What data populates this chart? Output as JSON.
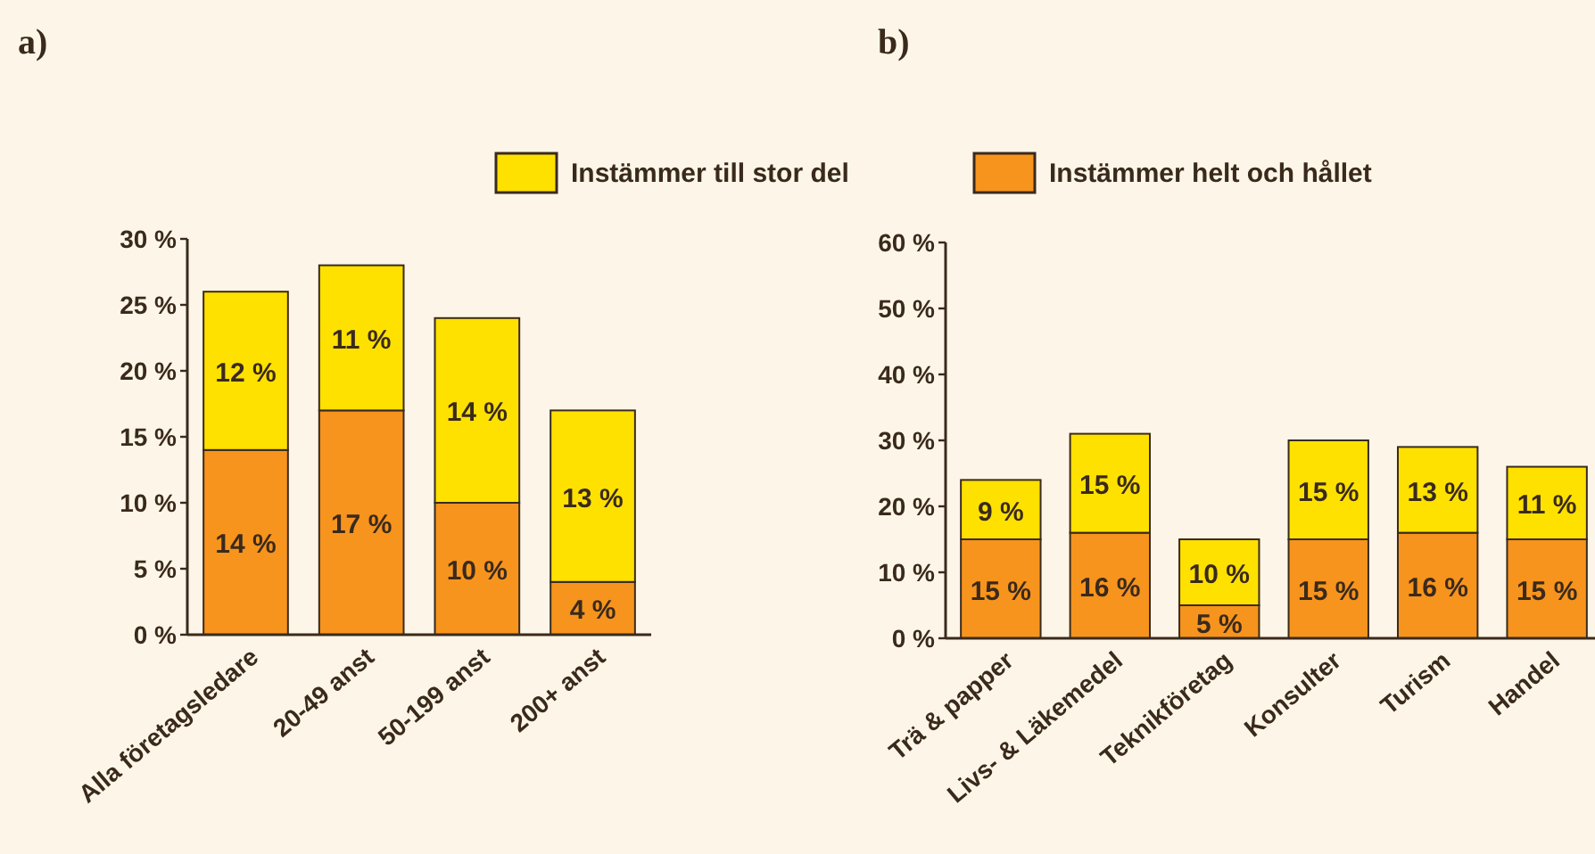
{
  "chart_data": [
    {
      "type": "bar",
      "title": "a)",
      "categories": [
        "Alla företagsledare",
        "20-49 anst",
        "50-199 anst",
        "200+ anst"
      ],
      "stacked": true,
      "legend": false,
      "ylim": [
        0,
        30
      ],
      "yticks": [
        {
          "value": 0,
          "label": "0 %"
        },
        {
          "value": 5,
          "label": "5 %"
        },
        {
          "value": 10,
          "label": "10 %"
        },
        {
          "value": 15,
          "label": "15 %"
        },
        {
          "value": 20,
          "label": "20 %"
        },
        {
          "value": 25,
          "label": "25 %"
        },
        {
          "value": 30,
          "label": "30 %"
        }
      ],
      "series": [
        {
          "color": "#f7941d",
          "values": [
            14,
            17,
            10,
            4
          ],
          "value_labels": [
            "14 %",
            "17 %",
            "10 %",
            "4 %"
          ]
        },
        {
          "color": "#ffe100",
          "values": [
            12,
            11,
            14,
            13
          ],
          "value_labels": [
            "12 %",
            "11 %",
            "14 %",
            "13 %"
          ]
        }
      ]
    },
    {
      "type": "bar",
      "title": "b)",
      "categories": [
        "Trä & papper",
        "Livs- & Läkemedel",
        "Teknikföretag",
        "Konsulter",
        "Turism",
        "Handel"
      ],
      "stacked": true,
      "legend": "top",
      "ylim": [
        0,
        60
      ],
      "yticks": [
        {
          "value": 0,
          "label": "0 %"
        },
        {
          "value": 10,
          "label": "10 %"
        },
        {
          "value": 20,
          "label": "20 %"
        },
        {
          "value": 30,
          "label": "30 %"
        },
        {
          "value": 40,
          "label": "40 %"
        },
        {
          "value": 50,
          "label": "50 %"
        },
        {
          "value": 60,
          "label": "60 %"
        }
      ],
      "series": [
        {
          "name": "Instämmer helt och hållet",
          "color": "#f7941d",
          "values": [
            15,
            16,
            5,
            15,
            16,
            15
          ],
          "value_labels": [
            "15 %",
            "16 %",
            "5 %",
            "15 %",
            "16 %",
            "15 %"
          ]
        },
        {
          "name": "Instämmer till stor del",
          "color": "#ffe100",
          "values": [
            9,
            15,
            10,
            15,
            13,
            11
          ],
          "value_labels": [
            "9 %",
            "15 %",
            "10 %",
            "15 %",
            "13 %",
            "11 %"
          ]
        }
      ]
    }
  ]
}
